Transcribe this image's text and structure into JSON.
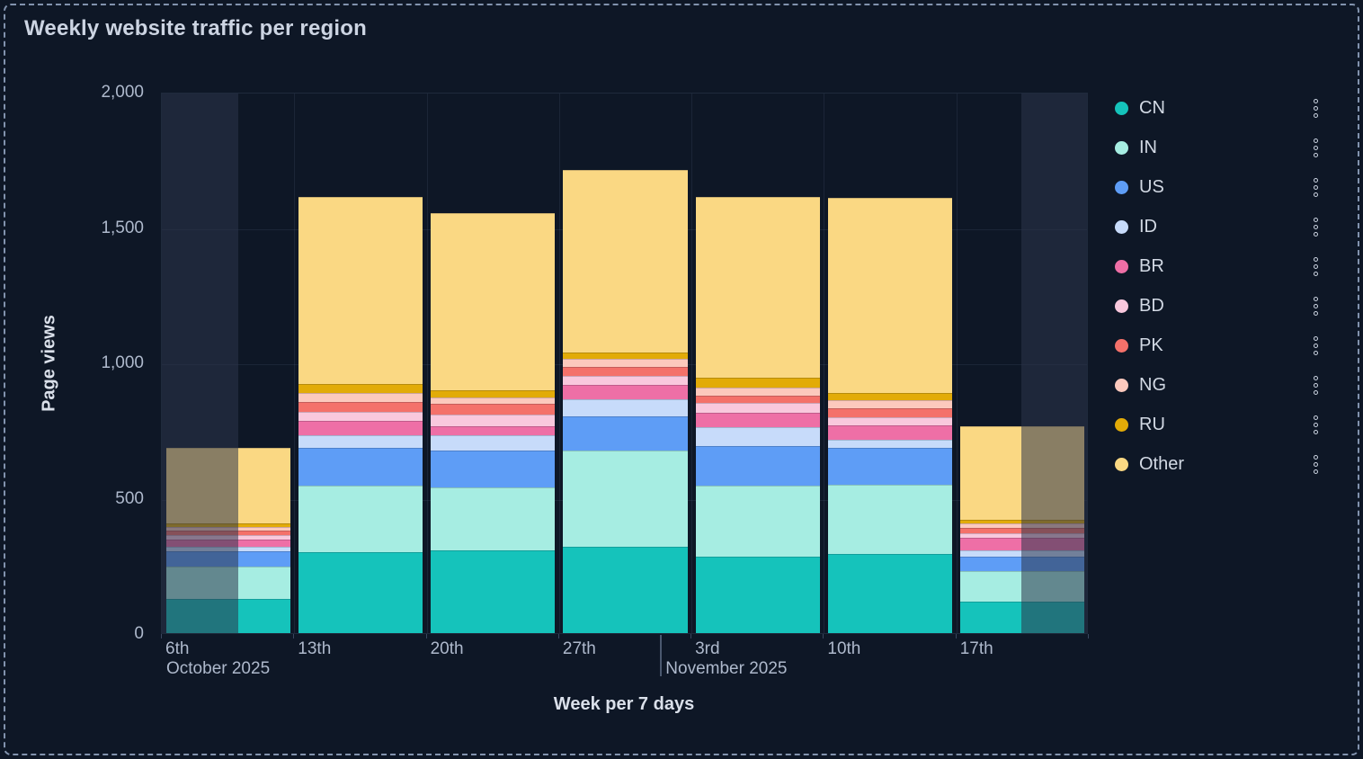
{
  "panel": {
    "title": "Weekly website traffic per region"
  },
  "chart_data": {
    "type": "bar",
    "stacked": true,
    "title": "Weekly website traffic per region",
    "xlabel": "Week per 7 days",
    "ylabel": "Page views",
    "ylim": [
      0,
      2000
    ],
    "grid": true,
    "legend_position": "right",
    "yticks": [
      {
        "value": 0,
        "label": "0"
      },
      {
        "value": 500,
        "label": "500"
      },
      {
        "value": 1000,
        "label": "1,000"
      },
      {
        "value": 1500,
        "label": "1,500"
      },
      {
        "value": 2000,
        "label": "2,000"
      }
    ],
    "categories": [
      "6th",
      "13th",
      "20th",
      "27th",
      "3rd",
      "10th",
      "17th"
    ],
    "month_labels": [
      {
        "label": "October 2025",
        "slot": 0
      },
      {
        "label": "November 2025",
        "slot": 3.77
      }
    ],
    "month_divider_slot": 3.77,
    "series": [
      {
        "name": "CN",
        "color": "#15C3BB",
        "values": [
          125,
          300,
          305,
          320,
          282,
          292,
          116
        ]
      },
      {
        "name": "IN",
        "color": "#A6EDE2",
        "values": [
          122,
          245,
          232,
          355,
          262,
          257,
          113
        ]
      },
      {
        "name": "US",
        "color": "#5E9DF6",
        "values": [
          55,
          140,
          139,
          125,
          147,
          136,
          55
        ]
      },
      {
        "name": "ID",
        "color": "#C7DBFA",
        "values": [
          17,
          45,
          56,
          64,
          70,
          31,
          22
        ]
      },
      {
        "name": "BR",
        "color": "#EE6FA6",
        "values": [
          27,
          55,
          33,
          52,
          53,
          51,
          45
        ]
      },
      {
        "name": "BD",
        "color": "#F9C8DD",
        "values": [
          17,
          31,
          44,
          33,
          35,
          29,
          17
        ]
      },
      {
        "name": "PK",
        "color": "#F4716A",
        "values": [
          17,
          39,
          39,
          34,
          29,
          34,
          21
        ]
      },
      {
        "name": "NG",
        "color": "#FCC9BD",
        "values": [
          13,
          33,
          24,
          32,
          30,
          30,
          15
        ]
      },
      {
        "name": "RU",
        "color": "#E2AB08",
        "values": [
          14,
          33,
          26,
          22,
          36,
          28,
          16
        ]
      },
      {
        "name": "Other",
        "color": "#FAD883",
        "values": [
          279,
          690,
          653,
          674,
          666,
          720,
          344
        ]
      }
    ],
    "week_totals": [
      686,
      1611,
      1551,
      1711,
      1610,
      1608,
      764
    ]
  },
  "legend": {
    "kebab_icon": "kebab-menu-icon"
  }
}
